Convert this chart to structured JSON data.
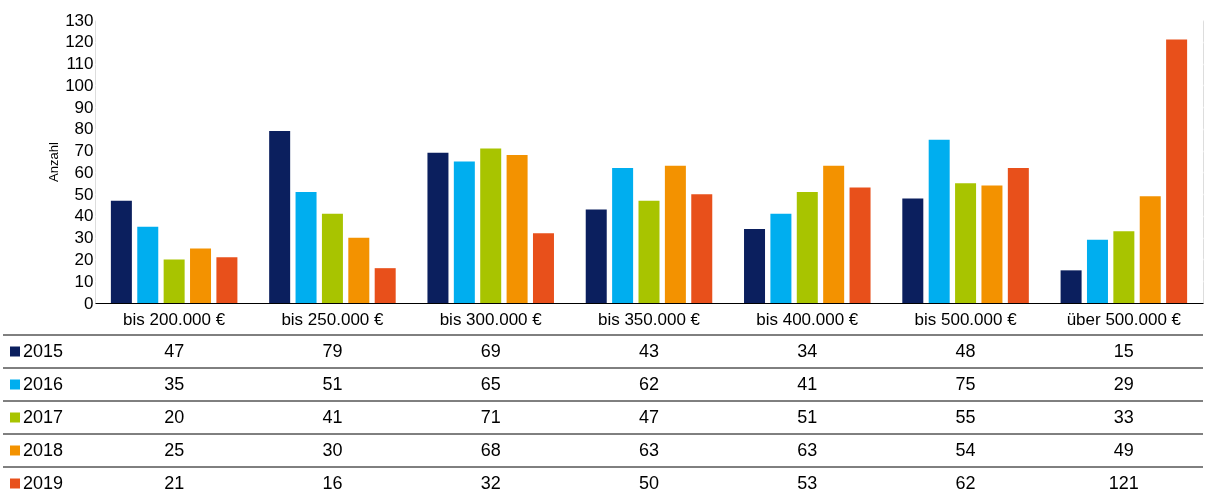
{
  "chart_data": {
    "type": "bar",
    "ylabel": "Anzahl",
    "categories": [
      "bis 200.000 €",
      "bis 250.000 €",
      "bis 300.000 €",
      "bis 350.000 €",
      "bis 400.000 €",
      "bis 500.000 €",
      "über 500.000 €"
    ],
    "series": [
      {
        "name": "2015",
        "color": "#0b1f5e",
        "values": [
          47,
          79,
          69,
          43,
          34,
          48,
          15
        ]
      },
      {
        "name": "2016",
        "color": "#00aeef",
        "values": [
          35,
          51,
          65,
          62,
          41,
          75,
          29
        ]
      },
      {
        "name": "2017",
        "color": "#a8c400",
        "values": [
          20,
          41,
          71,
          47,
          51,
          55,
          33
        ]
      },
      {
        "name": "2018",
        "color": "#f39200",
        "values": [
          25,
          30,
          68,
          63,
          63,
          54,
          49
        ]
      },
      {
        "name": "2019",
        "color": "#e8501b",
        "values": [
          21,
          16,
          32,
          50,
          53,
          62,
          121
        ]
      }
    ],
    "ylim": [
      0,
      130
    ],
    "yticks": [
      0,
      10,
      20,
      30,
      40,
      50,
      60,
      70,
      80,
      90,
      100,
      110,
      120,
      130
    ],
    "grid": "y",
    "data_labels": true,
    "legend": "bottom left"
  }
}
